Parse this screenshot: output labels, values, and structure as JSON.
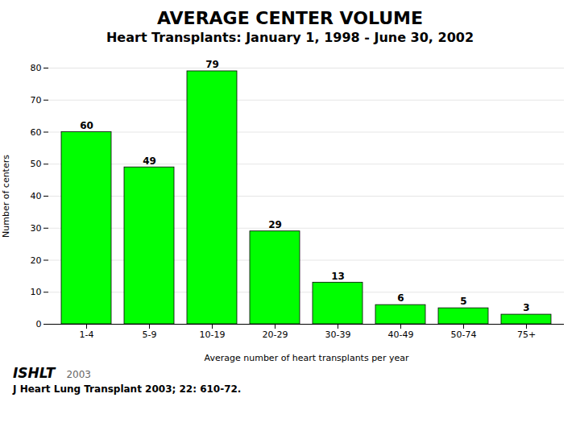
{
  "chart_data": {
    "type": "bar",
    "title": "AVERAGE CENTER VOLUME",
    "subtitle": "Heart Transplants: January 1, 1998 - June 30, 2002",
    "categories": [
      "1-4",
      "5-9",
      "10-19",
      "20-29",
      "30-39",
      "40-49",
      "50-74",
      "75+"
    ],
    "values": [
      60,
      49,
      79,
      29,
      13,
      6,
      5,
      3
    ],
    "color": "#00FF00",
    "xlabel": "Average number of heart transplants per year",
    "ylabel": "Number of centers",
    "ylim": [
      0,
      80
    ],
    "yticks": [
      0,
      10,
      20,
      30,
      40,
      50,
      60,
      70,
      80
    ],
    "grid": true,
    "data_labels": true,
    "annotations": [
      "ISHLT",
      "2003",
      "J Heart Lung Transplant 2003; 22: 610-72."
    ]
  }
}
